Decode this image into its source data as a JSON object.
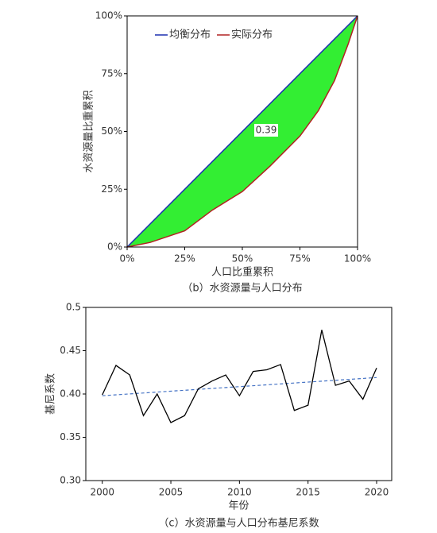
{
  "chart_data": [
    {
      "type": "area",
      "caption": "（b）水资源量与人口分布",
      "xlabel": "人口比重累积",
      "ylabel": "水资源量比重累积",
      "annotation": "0.39",
      "fill_color": "#33ee33",
      "xlim": [
        0,
        100
      ],
      "ylim": [
        0,
        100
      ],
      "xticks": [
        {
          "value": 0,
          "label": "0%"
        },
        {
          "value": 25,
          "label": "25%"
        },
        {
          "value": 50,
          "label": "50%"
        },
        {
          "value": 75,
          "label": "75%"
        },
        {
          "value": 100,
          "label": "100%"
        }
      ],
      "yticks": [
        {
          "value": 0,
          "label": "0%"
        },
        {
          "value": 25,
          "label": "25%"
        },
        {
          "value": 50,
          "label": "50%"
        },
        {
          "value": 75,
          "label": "75%"
        },
        {
          "value": 100,
          "label": "100%"
        }
      ],
      "legend": "upper left",
      "series": [
        {
          "name": "均衡分布",
          "color": "#1a2fb0",
          "x": [
            0,
            100
          ],
          "values": [
            0,
            100
          ]
        },
        {
          "name": "实际分布",
          "color": "#b22222",
          "x": [
            0,
            10,
            25,
            37,
            50,
            62,
            75,
            83,
            90,
            96,
            100
          ],
          "values": [
            0,
            2,
            7,
            16,
            24,
            35,
            48,
            59,
            72,
            88,
            100
          ]
        }
      ]
    },
    {
      "type": "line",
      "caption": "（c）水资源量与人口分布基尼系数",
      "xlabel": "年份",
      "ylabel": "基尼系数",
      "color": "#000000",
      "xlim": [
        1998.8,
        2021.1
      ],
      "ylim": [
        0.3,
        0.5
      ],
      "xticks": [
        2000,
        2005,
        2010,
        2015,
        2020
      ],
      "yticks": [
        {
          "value": 0.3,
          "label": "0.30"
        },
        0.35,
        {
          "value": 0.4,
          "label": "0.40"
        },
        0.45,
        0.5
      ],
      "x": [
        2000,
        2001,
        2002,
        2003,
        2004,
        2005,
        2006,
        2007,
        2008,
        2009,
        2010,
        2011,
        2012,
        2013,
        2014,
        2015,
        2016,
        2017,
        2018,
        2019,
        2020
      ],
      "values": [
        0.399,
        0.433,
        0.422,
        0.375,
        0.4,
        0.367,
        0.375,
        0.406,
        0.415,
        0.422,
        0.398,
        0.426,
        0.428,
        0.434,
        0.381,
        0.387,
        0.474,
        0.41,
        0.415,
        0.394,
        0.43
      ],
      "trend": {
        "color": "#4472c4",
        "x": [
          2000,
          2020
        ],
        "values": [
          0.398,
          0.419
        ]
      }
    }
  ]
}
